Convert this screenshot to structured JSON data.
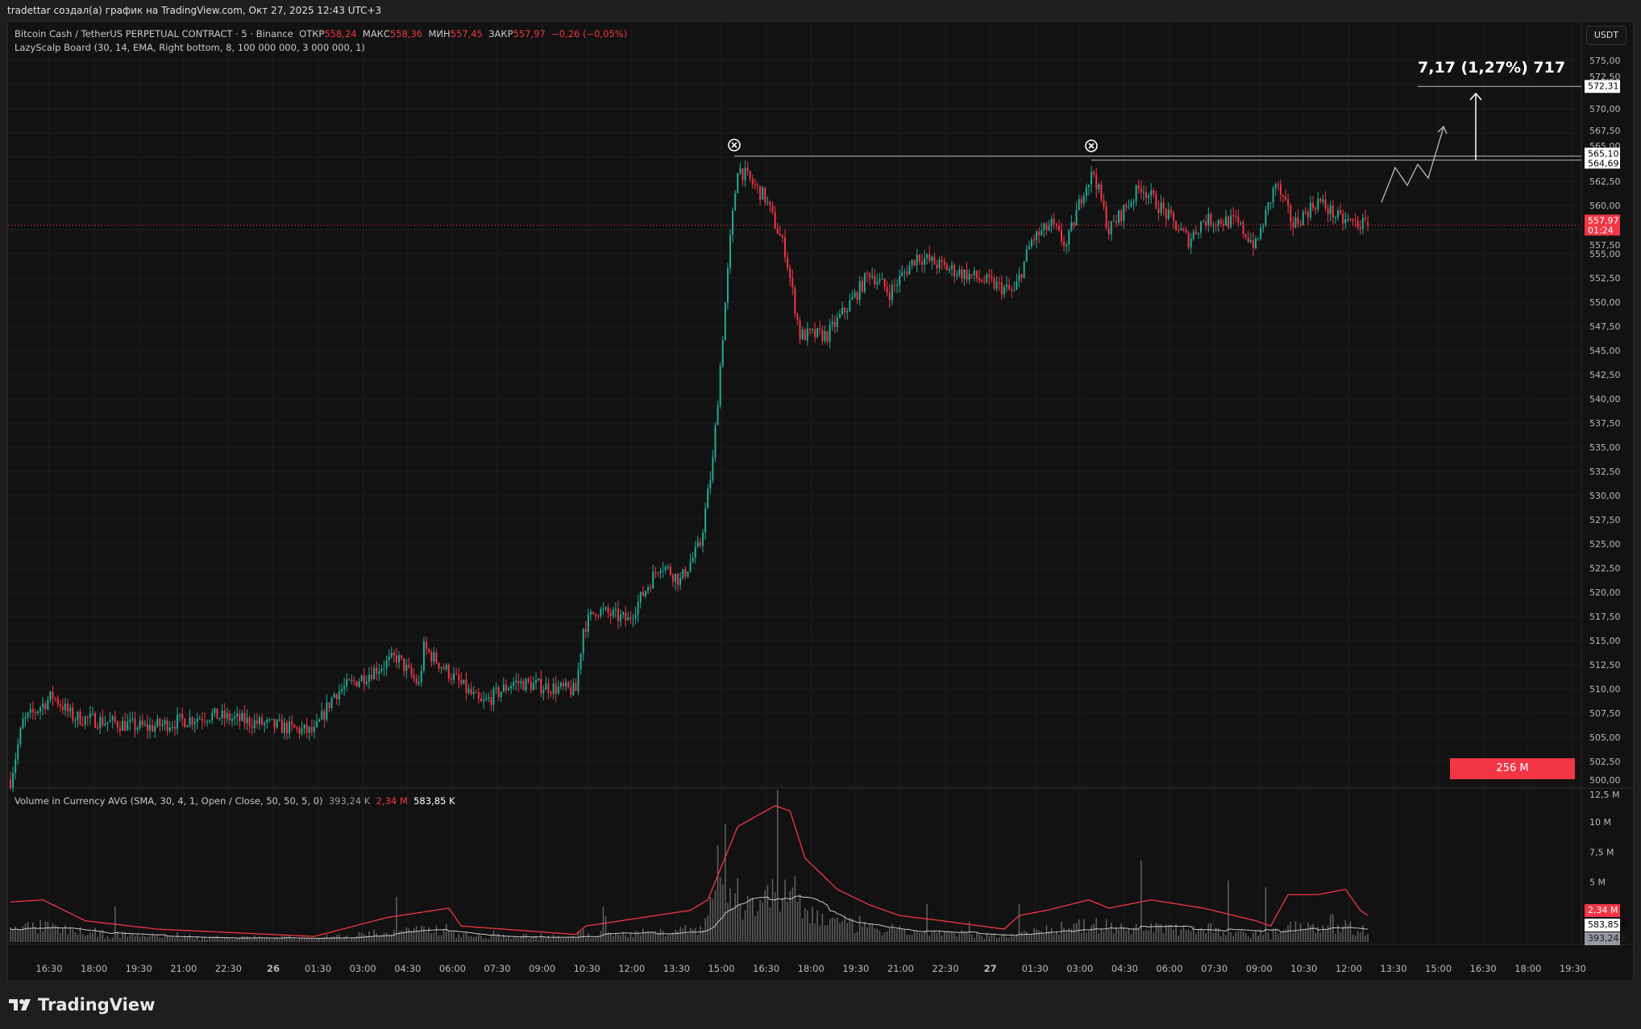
{
  "header": {
    "byline": "tradettar создал(а) график на TradingView.com, Окт 27, 2025 12:43 UTC+3"
  },
  "symbol": {
    "title": "Bitcoin Cash / TetherUS PERPETUAL CONTRACT · 5 · Binance",
    "open_label": "ОТКР",
    "open": "558,24",
    "high_label": "МАКС",
    "high": "558,36",
    "low_label": "МИН",
    "low": "557,45",
    "close_label": "ЗАКР",
    "close": "557,97",
    "change": "−0,26 (−0,05%)"
  },
  "indicator": {
    "label": "LazyScalp Board (30, 14, EMA, Right bottom, 8, 100 000 000, 3 000 000, 1)",
    "box_value": "256 M"
  },
  "volume_indicator": {
    "label": "Volume in Currency AVG (SMA, 30, 4, 1, Open / Close, 50, 50, 5, 0)",
    "v1": "393,24 K",
    "v2": "2,34 M",
    "v3": "583,85 K"
  },
  "currency_button": "USDT",
  "price_axis": {
    "ticks": [
      575,
      572.5,
      570,
      567.5,
      565,
      562.5,
      560,
      557.5,
      555,
      552.5,
      550,
      547.5,
      545,
      542.5,
      540,
      537.5,
      535,
      532.5,
      530,
      527.5,
      525,
      522.5,
      520,
      517.5,
      515,
      512.5,
      510,
      507.5,
      505,
      502.5,
      500
    ],
    "target_label": "572,31",
    "level1_label": "565,10",
    "level2_label": "564,69",
    "last_price_label": "557,97",
    "countdown": "01:24"
  },
  "volume_axis": {
    "ticks": [
      {
        "v": 12.5,
        "label": "12,5 M"
      },
      {
        "v": 10,
        "label": "10 M"
      },
      {
        "v": 7.5,
        "label": "7,5 M"
      },
      {
        "v": 5,
        "label": "5 M"
      }
    ],
    "badges": [
      "2,34 M",
      "583,85 K",
      "393,24 K"
    ]
  },
  "time_axis": [
    "16:30",
    "18:00",
    "19:30",
    "21:00",
    "22:30",
    "26",
    "01:30",
    "03:00",
    "04:30",
    "06:00",
    "07:30",
    "09:00",
    "10:30",
    "12:00",
    "13:30",
    "15:00",
    "16:30",
    "18:00",
    "19:30",
    "21:00",
    "22:30",
    "27",
    "01:30",
    "03:00",
    "04:30",
    "06:00",
    "07:30",
    "09:00",
    "10:30",
    "12:00",
    "13:30",
    "15:00",
    "16:30",
    "18:00",
    "19:30"
  ],
  "measure": {
    "text": "7,17 (1,27%) 717",
    "target": 572.31
  },
  "levels": [
    565.1,
    564.69
  ],
  "colors": {
    "up": "#22ab94",
    "down": "#f23645",
    "bg": "#121212"
  },
  "brand": "TradingView",
  "chart_data": {
    "type": "candlestick",
    "interval": "5m",
    "price_anchors": [
      [
        0,
        500.6
      ],
      [
        5,
        506.6
      ],
      [
        17,
        509.3
      ],
      [
        25,
        507.1
      ],
      [
        55,
        506.0
      ],
      [
        80,
        507.3
      ],
      [
        122,
        505.5
      ],
      [
        130,
        509.5
      ],
      [
        155,
        513.3
      ],
      [
        164,
        510.4
      ],
      [
        166,
        514.2
      ],
      [
        189,
        508.4
      ],
      [
        202,
        510.7
      ],
      [
        227,
        509.8
      ],
      [
        230,
        516.3
      ],
      [
        235,
        518.2
      ],
      [
        248,
        517.1
      ],
      [
        261,
        523.0
      ],
      [
        269,
        521.2
      ],
      [
        277,
        525.0
      ],
      [
        282,
        533.6
      ],
      [
        286,
        546.6
      ],
      [
        289,
        556.4
      ],
      [
        292,
        564.0
      ],
      [
        303,
        560.8
      ],
      [
        311,
        555.4
      ],
      [
        317,
        546.6
      ],
      [
        328,
        546.6
      ],
      [
        340,
        551.0
      ],
      [
        345,
        553.1
      ],
      [
        353,
        551.0
      ],
      [
        364,
        554.8
      ],
      [
        374,
        553.7
      ],
      [
        387,
        552.6
      ],
      [
        403,
        551.0
      ],
      [
        410,
        556.4
      ],
      [
        418,
        558.0
      ],
      [
        424,
        555.8
      ],
      [
        431,
        561.8
      ],
      [
        435,
        563.4
      ],
      [
        441,
        557.4
      ],
      [
        454,
        562.0
      ],
      [
        462,
        559.7
      ],
      [
        473,
        556.4
      ],
      [
        479,
        558.5
      ],
      [
        492,
        558.3
      ],
      [
        500,
        555.8
      ],
      [
        508,
        562.3
      ],
      [
        515,
        558.0
      ],
      [
        525,
        560.5
      ],
      [
        534,
        558.5
      ],
      [
        545,
        557.97
      ]
    ],
    "volume_sma_anchors_m": [
      [
        0,
        3.34
      ],
      [
        13,
        3.51
      ],
      [
        30,
        1.77
      ],
      [
        59,
        1.07
      ],
      [
        122,
        0.46
      ],
      [
        151,
        2.03
      ],
      [
        176,
        2.82
      ],
      [
        181,
        1.33
      ],
      [
        227,
        0.63
      ],
      [
        231,
        1.33
      ],
      [
        273,
        2.64
      ],
      [
        280,
        3.51
      ],
      [
        286,
        6.57
      ],
      [
        292,
        9.62
      ],
      [
        307,
        11.37
      ],
      [
        313,
        10.93
      ],
      [
        319,
        7.0
      ],
      [
        332,
        4.39
      ],
      [
        345,
        3.08
      ],
      [
        357,
        2.2
      ],
      [
        374,
        1.77
      ],
      [
        399,
        1.07
      ],
      [
        405,
        2.2
      ],
      [
        416,
        2.64
      ],
      [
        433,
        3.51
      ],
      [
        441,
        2.82
      ],
      [
        458,
        3.51
      ],
      [
        479,
        2.82
      ],
      [
        500,
        1.77
      ],
      [
        506,
        1.33
      ],
      [
        513,
        3.95
      ],
      [
        525,
        3.95
      ],
      [
        536,
        4.39
      ],
      [
        542,
        2.64
      ],
      [
        545,
        2.2
      ]
    ],
    "volume_ylim_m": [
      0,
      12.5
    ],
    "ylim": [
      500,
      575
    ]
  }
}
